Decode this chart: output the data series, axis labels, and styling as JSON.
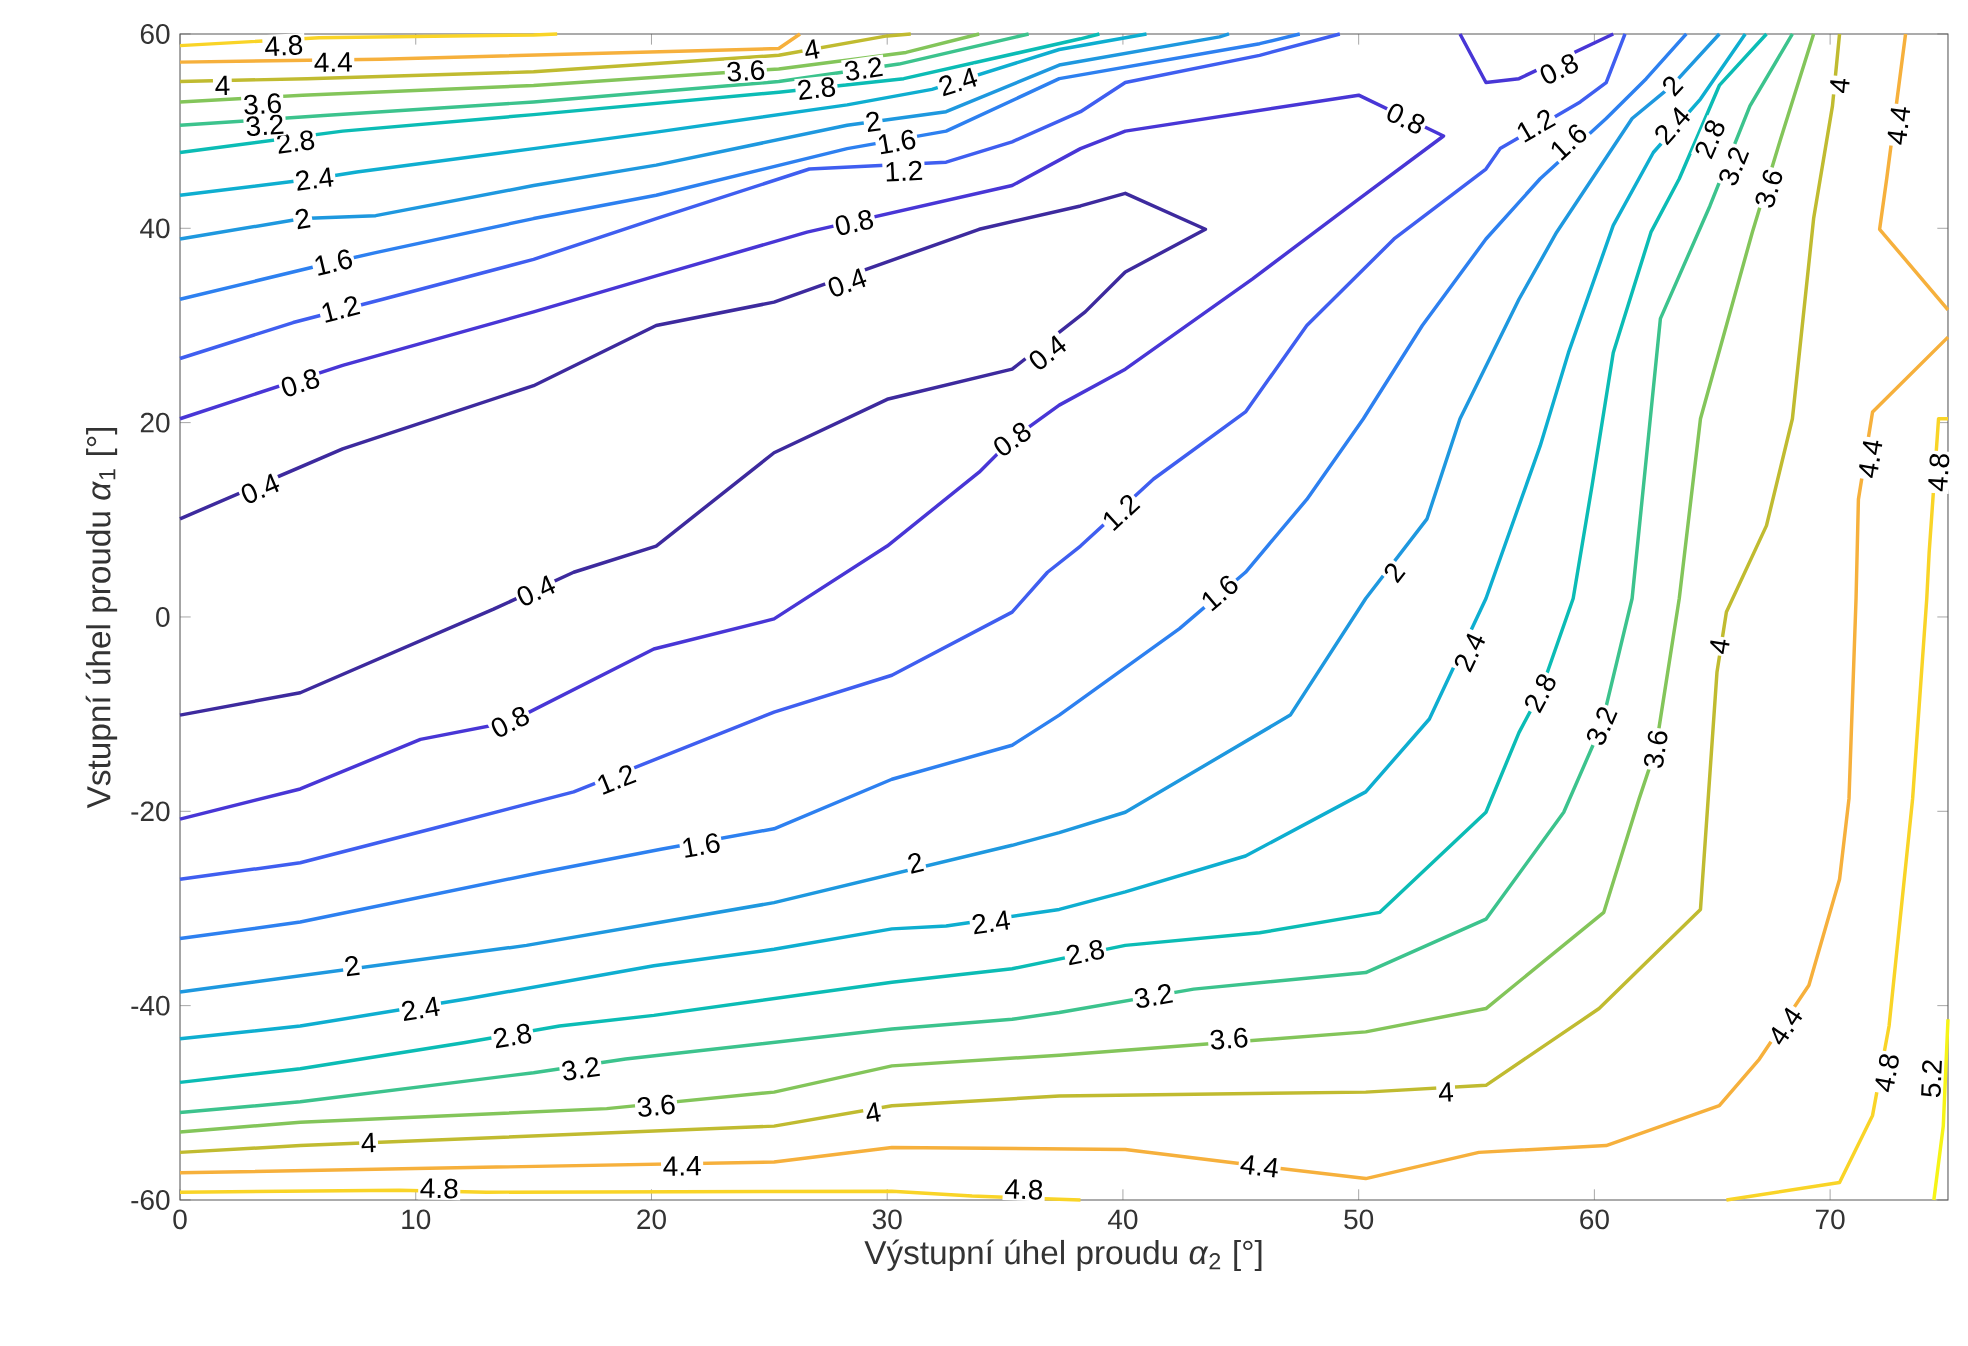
{
  "chart_data": {
    "type": "line",
    "xlabel": "Výstupní úhel proudu *α*$_{2}$ [°]",
    "ylabel": "Vstupní úhel proudu *α*$_{1}$ [°]",
    "xlim": [
      0,
      75
    ],
    "ylim": [
      -60,
      60
    ],
    "xticks": [
      0,
      10,
      20,
      30,
      40,
      50,
      60,
      70
    ],
    "yticks": [
      -60,
      -40,
      -20,
      0,
      20,
      40,
      60
    ],
    "grid": false,
    "marker": "none",
    "line_style": "solid",
    "series": [
      {
        "color": "#3d2a9e",
        "x": [
          0,
          6.9,
          15.0,
          20.2,
          25.2,
          33.9,
          38.2,
          40.1,
          43.5,
          40.1,
          38.4,
          35.3,
          30.0,
          25.2,
          20.2,
          16.7,
          13.3,
          5.1,
          0
        ],
        "values": [
          10.1,
          17.3,
          23.8,
          30.0,
          32.4,
          39.9,
          42.3,
          43.6,
          39.9,
          35.5,
          31.4,
          25.5,
          22.4,
          16.9,
          7.3,
          4.6,
          0.8,
          -7.8,
          -10.1
        ]
      },
      {
        "color": "#4836d6",
        "x": [
          0,
          6.9,
          15.0,
          20.2,
          26.6,
          35.3,
          38.2,
          40.1,
          50.0,
          53.6,
          50.0,
          45.5,
          40.1,
          37.3,
          35.3,
          33.9,
          30.0,
          25.2,
          20.1,
          14.0,
          10.2,
          5.1,
          0
        ],
        "values": [
          20.4,
          25.9,
          31.4,
          35.1,
          39.6,
          44.4,
          48.2,
          50.0,
          53.7,
          49.5,
          43.0,
          34.8,
          25.5,
          21.8,
          18.3,
          14.9,
          7.3,
          -0.2,
          -3.3,
          -10.8,
          -12.6,
          -17.7,
          -20.8
        ]
      },
      {
        "color": "#4836d6",
        "x": [
          54.3,
          55.4,
          56.8,
          60.8
        ],
        "values": [
          60,
          55.0,
          55.4,
          60
        ]
      },
      {
        "color": "#3f5ef0",
        "x": [
          0,
          4.8,
          8.6,
          15.0,
          20.2,
          26.7,
          32.5,
          35.3,
          38.2,
          40.1,
          45.8,
          49.2
        ],
        "values": [
          26.6,
          30.3,
          32.7,
          36.8,
          41.0,
          46.1,
          46.8,
          48.9,
          52.0,
          55.0,
          57.8,
          60
        ]
      },
      {
        "color": "#3f5ef0",
        "x": [
          61.3,
          60.5,
          59.4,
          56.0,
          55.4,
          51.5,
          47.8,
          45.2,
          41.3,
          38.2,
          36.8,
          35.3,
          30.2,
          25.2,
          16.7,
          10.7,
          5.1,
          0
        ],
        "values": [
          60,
          55.0,
          53.0,
          48.2,
          46.1,
          38.9,
          30.0,
          21.1,
          14.2,
          7.3,
          4.6,
          0.5,
          -6.0,
          -9.8,
          -18.0,
          -21.8,
          -25.3,
          -27.0
        ]
      },
      {
        "color": "#2d80f0",
        "x": [
          0,
          6.5,
          8.3,
          15.0,
          20.2,
          28.3,
          32.5,
          37.3,
          45.8,
          47.5
        ],
        "values": [
          32.7,
          36.5,
          37.5,
          41.0,
          43.4,
          48.2,
          50.0,
          55.4,
          59.0,
          60
        ]
      },
      {
        "color": "#2d80f0",
        "x": [
          63.9,
          62.2,
          60.5,
          57.7,
          55.4,
          52.7,
          50.2,
          47.8,
          45.2,
          42.4,
          37.3,
          35.3,
          30.2,
          25.2,
          20.4,
          15.3,
          5.1,
          0
        ],
        "values": [
          60,
          55.4,
          51.3,
          45.1,
          38.9,
          30.0,
          20.4,
          12.1,
          4.6,
          -1.2,
          -10.1,
          -13.2,
          -16.7,
          -21.8,
          -23.9,
          -26.3,
          -31.4,
          -33.1
        ]
      },
      {
        "color": "#1e98df",
        "x": [
          0,
          5.2,
          8.3,
          15.0,
          20.2,
          28.3,
          32.5,
          37.3,
          44.1,
          44.5
        ],
        "values": [
          38.9,
          41.0,
          41.3,
          44.4,
          46.5,
          50.6,
          52.0,
          56.8,
          59.7,
          60
        ]
      },
      {
        "color": "#1e98df",
        "x": [
          65.3,
          63.3,
          61.6,
          58.4,
          56.8,
          54.3,
          52.9,
          50.3,
          47.1,
          40.1,
          37.3,
          35.3,
          25.2,
          14.7,
          0
        ],
        "values": [
          60,
          54.7,
          51.3,
          39.6,
          32.7,
          20.4,
          10.1,
          1.9,
          -10.1,
          -20.1,
          -22.2,
          -23.5,
          -29.4,
          -33.8,
          -38.6
        ]
      },
      {
        "color": "#0eaed0",
        "x": [
          0,
          5.7,
          7.5,
          15.0,
          20.2,
          28.3,
          31.9,
          37.3,
          41.0
        ],
        "values": [
          43.4,
          45.1,
          45.8,
          48.2,
          49.9,
          52.7,
          54.3,
          58.4,
          60
        ]
      },
      {
        "color": "#0eaed0",
        "x": [
          66.4,
          64.5,
          62.5,
          60.8,
          58.9,
          57.7,
          55.4,
          53.0,
          50.3,
          45.2,
          40.1,
          37.3,
          32.5,
          30.2,
          25.2,
          20.1,
          12.2,
          5.1,
          0
        ],
        "values": [
          60,
          53.3,
          47.8,
          40.3,
          27.2,
          17.6,
          1.9,
          -10.5,
          -18.0,
          -24.6,
          -28.3,
          -30.1,
          -31.8,
          -32.1,
          -34.2,
          -35.9,
          -39.3,
          -42.1,
          -43.4
        ]
      },
      {
        "color": "#0bbcb5",
        "x": [
          0,
          6.9,
          15.0,
          25.4,
          30.7,
          38.2,
          39
        ],
        "values": [
          47.8,
          50.0,
          51.7,
          54.0,
          55.4,
          59.5,
          60
        ]
      },
      {
        "color": "#0bbcb5",
        "x": [
          67.3,
          65.3,
          63.6,
          62.4,
          60.8,
          59.9,
          59.1,
          57.7,
          56.8,
          55.4,
          50.9,
          45.8,
          40.1,
          35.3,
          30.2,
          20.1,
          16.1,
          12.1,
          5.1,
          0
        ],
        "values": [
          60,
          54.7,
          45.1,
          39.6,
          27.2,
          13.5,
          1.9,
          -7.8,
          -11.9,
          -20.1,
          -30.4,
          -32.5,
          -33.8,
          -36.2,
          -37.6,
          -41.0,
          -42.1,
          -43.8,
          -46.5,
          -47.9
        ]
      },
      {
        "color": "#3cc38d",
        "x": [
          0,
          6.1,
          15.0,
          25.4,
          30.5,
          36
        ],
        "values": [
          50.6,
          51.6,
          53.0,
          55.1,
          56.9,
          60
        ]
      },
      {
        "color": "#3cc38d",
        "x": [
          68.4,
          66.6,
          64.9,
          62.8,
          61.6,
          60.3,
          58.7,
          55.4,
          50.3,
          43.0,
          37.3,
          35.3,
          30.2,
          18.9,
          15.0,
          5.1,
          0
        ],
        "values": [
          60,
          52.6,
          42.3,
          30.7,
          1.9,
          -11.2,
          -20.1,
          -31.1,
          -36.6,
          -38.3,
          -40.7,
          -41.4,
          -42.4,
          -45.5,
          -46.9,
          -49.9,
          -51.0
        ]
      },
      {
        "color": "#83c55a",
        "x": [
          0,
          5.2,
          15.0,
          25.4,
          30.8,
          33.9
        ],
        "values": [
          53.0,
          53.7,
          54.7,
          56.4,
          58.1,
          60
        ]
      },
      {
        "color": "#83c55a",
        "x": [
          69.3,
          67.9,
          66.7,
          64.5,
          63.6,
          62.6,
          61.9,
          60.4,
          55.4,
          50.3,
          37.3,
          30.2,
          25.2,
          18.1,
          5.1,
          0
        ],
        "values": [
          60,
          49.2,
          39.6,
          20.4,
          1.9,
          -13.6,
          -18.7,
          -30.4,
          -40.3,
          -42.7,
          -45.1,
          -46.2,
          -48.9,
          -50.6,
          -52.0,
          -53.0
        ]
      },
      {
        "color": "#c0bb30",
        "x": [
          0,
          5.4,
          15.0,
          25.4,
          30.0,
          31
        ],
        "values": [
          55.1,
          55.4,
          56.1,
          57.8,
          59.8,
          60
        ]
      },
      {
        "color": "#c0bb30",
        "x": [
          70.4,
          70.1,
          69.3,
          68.4,
          67.3,
          65.6,
          65.2,
          64.5,
          60.2,
          55.4,
          50.3,
          37.3,
          30.2,
          25.2,
          5.1,
          0
        ],
        "values": [
          60,
          52.6,
          41.0,
          20.4,
          9.4,
          0.5,
          -5.7,
          -30.1,
          -40.3,
          -48.2,
          -48.9,
          -49.3,
          -50.3,
          -52.4,
          -54.4,
          -55.1
        ]
      },
      {
        "color": "#f6b03c",
        "x": [
          0,
          8.5,
          25.4,
          26.3
        ],
        "values": [
          57.1,
          57.4,
          58.5,
          60
        ]
      },
      {
        "color": "#f6b03c",
        "x": [
          73.2,
          72.4,
          72.1,
          75
        ],
        "values": [
          60,
          45.1,
          39.9,
          31.6
        ]
      },
      {
        "color": "#f6b03c",
        "x": [
          75,
          71.8,
          71.2,
          71.1,
          70.8,
          70.4,
          69.1,
          67.0,
          65.3,
          60.5,
          55.1,
          50.3,
          45.8,
          40.1,
          30.2,
          25.2,
          0
        ],
        "values": [
          28.8,
          21.1,
          12.1,
          1.9,
          -18.7,
          -27.0,
          -37.9,
          -45.5,
          -50.3,
          -54.4,
          -55.1,
          -57.8,
          -56.5,
          -54.8,
          -54.6,
          -56.1,
          -57.2
        ]
      },
      {
        "color": "#f9d427",
        "x": [
          0,
          5.9,
          15.0,
          16
        ],
        "values": [
          58.8,
          59.6,
          59.9,
          60
        ]
      },
      {
        "color": "#f9d427",
        "x": [
          75,
          74.6,
          74.2,
          74.1,
          73.5,
          72.5,
          71.8,
          70.4,
          65.6
        ],
        "values": [
          20.4,
          20.4,
          6.6,
          1.9,
          -18.7,
          -42.1,
          -51.3,
          -58.2,
          -60
        ]
      },
      {
        "color": "#f9d427",
        "x": [
          0,
          9.3,
          13.0,
          30.2,
          33.6,
          38.2
        ],
        "values": [
          -59.2,
          -59.0,
          -59.2,
          -59.1,
          -59.6,
          -60
        ]
      },
      {
        "color": "#f6f416",
        "x": [
          75,
          74.8,
          74.4
        ],
        "values": [
          -41.4,
          -52.4,
          -60
        ]
      }
    ],
    "annotations": [
      {
        "text": "0.4",
        "x": 3.4,
        "y": 13.2
      },
      {
        "text": "0.4",
        "x": 28.3,
        "y": 34.4
      },
      {
        "text": "0.4",
        "x": 36.8,
        "y": 27.2
      },
      {
        "text": "0.4",
        "x": 15.1,
        "y": 2.7
      },
      {
        "text": "0.8",
        "x": 5.1,
        "y": 24.1
      },
      {
        "text": "0.8",
        "x": 28.6,
        "y": 40.6
      },
      {
        "text": "0.8",
        "x": 52.0,
        "y": 51.3
      },
      {
        "text": "0.8",
        "x": 58.5,
        "y": 56.4
      },
      {
        "text": "0.8",
        "x": 35.3,
        "y": 18.3
      },
      {
        "text": "0.8",
        "x": 14.0,
        "y": -10.8
      },
      {
        "text": "1.2",
        "x": 6.8,
        "y": 31.7
      },
      {
        "text": "1.2",
        "x": 30.7,
        "y": 45.9
      },
      {
        "text": "1.2",
        "x": 57.5,
        "y": 50.6
      },
      {
        "text": "1.2",
        "x": 39.9,
        "y": 10.8
      },
      {
        "text": "1.2",
        "x": 18.5,
        "y": -16.7
      },
      {
        "text": "1.6",
        "x": 6.5,
        "y": 36.5
      },
      {
        "text": "1.6",
        "x": 30.4,
        "y": 48.9
      },
      {
        "text": "1.6",
        "x": 58.9,
        "y": 48.9
      },
      {
        "text": "1.6",
        "x": 44.1,
        "y": 2.5
      },
      {
        "text": "1.6",
        "x": 22.1,
        "y": -23.5
      },
      {
        "text": "2",
        "x": 5.2,
        "y": 41.0
      },
      {
        "text": "2",
        "x": 29.4,
        "y": 51.0
      },
      {
        "text": "2",
        "x": 63.3,
        "y": 54.7
      },
      {
        "text": "2",
        "x": 51.5,
        "y": 4.6
      },
      {
        "text": "2",
        "x": 31.2,
        "y": -25.3
      },
      {
        "text": "2",
        "x": 7.3,
        "y": -35.9
      },
      {
        "text": "2.4",
        "x": 5.7,
        "y": 45.1
      },
      {
        "text": "2.4",
        "x": 33.0,
        "y": 55.1
      },
      {
        "text": "2.4",
        "x": 63.3,
        "y": 50.6
      },
      {
        "text": "2.4",
        "x": 54.7,
        "y": -3.6
      },
      {
        "text": "2.4",
        "x": 34.4,
        "y": -31.4
      },
      {
        "text": "2.4",
        "x": 10.2,
        "y": -40.3
      },
      {
        "text": "2.8",
        "x": 4.9,
        "y": 48.9
      },
      {
        "text": "2.8",
        "x": 27.0,
        "y": 54.4
      },
      {
        "text": "2.8",
        "x": 64.9,
        "y": 49.2
      },
      {
        "text": "2.8",
        "x": 57.7,
        "y": -7.8
      },
      {
        "text": "2.8",
        "x": 38.4,
        "y": -34.5
      },
      {
        "text": "2.8",
        "x": 14.1,
        "y": -43.1
      },
      {
        "text": "3.2",
        "x": 3.6,
        "y": 50.6
      },
      {
        "text": "3.2",
        "x": 29.0,
        "y": 56.4
      },
      {
        "text": "3.2",
        "x": 65.9,
        "y": 46.4
      },
      {
        "text": "3.2",
        "x": 60.3,
        "y": -11.2
      },
      {
        "text": "3.2",
        "x": 41.3,
        "y": -39.0
      },
      {
        "text": "3.2",
        "x": 17.0,
        "y": -46.5
      },
      {
        "text": "3.6",
        "x": 3.5,
        "y": 52.8
      },
      {
        "text": "3.6",
        "x": 24.0,
        "y": 56.2
      },
      {
        "text": "3.6",
        "x": 67.4,
        "y": 44.1
      },
      {
        "text": "3.6",
        "x": 62.6,
        "y": -13.6
      },
      {
        "text": "3.6",
        "x": 44.5,
        "y": -43.4
      },
      {
        "text": "3.6",
        "x": 20.2,
        "y": -50.3
      },
      {
        "text": "4",
        "x": 1.8,
        "y": 54.7
      },
      {
        "text": "4",
        "x": 26.8,
        "y": 58.4
      },
      {
        "text": "4",
        "x": 70.4,
        "y": 54.7
      },
      {
        "text": "4",
        "x": 65.3,
        "y": -3.0
      },
      {
        "text": "4",
        "x": 53.7,
        "y": -48.9
      },
      {
        "text": "4",
        "x": 29.4,
        "y": -51.0
      },
      {
        "text": "4",
        "x": 8.0,
        "y": -54.1
      },
      {
        "text": "4.4",
        "x": 6.5,
        "y": 57.1
      },
      {
        "text": "4.4",
        "x": 72.9,
        "y": 50.6
      },
      {
        "text": "4.4",
        "x": 71.7,
        "y": 16.3
      },
      {
        "text": "4.4",
        "x": 68.1,
        "y": -42.1
      },
      {
        "text": "4.4",
        "x": 45.8,
        "y": -56.5
      },
      {
        "text": "4.4",
        "x": 21.3,
        "y": -56.5
      },
      {
        "text": "4.8",
        "x": 4.4,
        "y": 58.8
      },
      {
        "text": "4.8",
        "x": 74.6,
        "y": 14.9
      },
      {
        "text": "4.8",
        "x": 72.4,
        "y": -46.9
      },
      {
        "text": "4.8",
        "x": 11.0,
        "y": -58.8
      },
      {
        "text": "4.8",
        "x": 35.8,
        "y": -58.9
      },
      {
        "text": "5.2",
        "x": 74.3,
        "y": -47.5
      }
    ]
  }
}
